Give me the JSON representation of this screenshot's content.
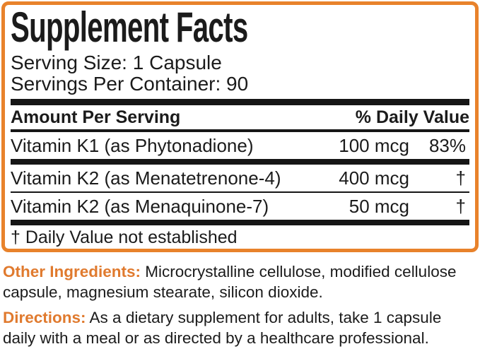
{
  "panel": {
    "title": "Supplement Facts",
    "serving_size": "Serving Size: 1 Capsule",
    "servings_per_container": "Servings Per Container: 90",
    "header": {
      "amount": "Amount Per Serving",
      "daily_value": "% Daily Value"
    },
    "rows": [
      {
        "name": "Vitamin K1 (as Phytonadione)",
        "amount": "100 mcg",
        "daily_value": "83%"
      },
      {
        "name": "Vitamin K2 (as Menatetrenone-4)",
        "amount": "400 mcg",
        "daily_value": "†"
      },
      {
        "name": "Vitamin K2 (as Menaquinone-7)",
        "amount": "50 mcg",
        "daily_value": "†"
      }
    ],
    "footnote": "† Daily Value not established"
  },
  "other_ingredients": {
    "label": "Other Ingredients:",
    "text": "Microcrystalline cellulose, modified cellulose capsule, magnesium stearate, silicon dioxide."
  },
  "directions": {
    "label": "Directions:",
    "text": "As a dietary supplement for adults, take 1 capsule daily with a meal or as directed by a healthcare professional."
  },
  "colors": {
    "accent_orange": "#E8822B",
    "label_orange": "#E07A2E",
    "text_black": "#1B1B1B",
    "divider_black": "#161616"
  }
}
